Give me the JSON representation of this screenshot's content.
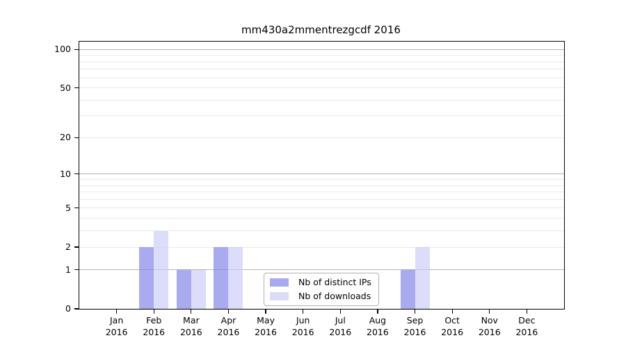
{
  "title": "mm430a2mmentrezgcdf 2016",
  "chart_data": {
    "type": "bar",
    "title": "mm430a2mmentrezgcdf 2016",
    "year_label": "2016",
    "categories": [
      "Jan",
      "Feb",
      "Mar",
      "Apr",
      "May",
      "Jun",
      "Jul",
      "Aug",
      "Sep",
      "Oct",
      "Nov",
      "Dec"
    ],
    "series": [
      {
        "name": "Nb of distinct IPs",
        "values": [
          0,
          2,
          1,
          2,
          0,
          0,
          0,
          0,
          1,
          0,
          0,
          0
        ],
        "bar_color": "rgba(134,134,234,0.7)",
        "legend_color": "#aaaaee"
      },
      {
        "name": "Nb of downloads",
        "values": [
          0,
          3,
          1,
          2,
          0,
          0,
          0,
          0,
          2,
          0,
          0,
          0
        ],
        "bar_color": "rgba(205,205,249,0.7)",
        "legend_color": "#dcdcf8"
      }
    ],
    "xlabel": "",
    "ylabel": "",
    "y_ticks": [
      0,
      1,
      2,
      5,
      10,
      20,
      50,
      100
    ],
    "major_grid_values": [
      1,
      10,
      100
    ],
    "minor_grid_values": [
      2,
      3,
      4,
      5,
      6,
      7,
      8,
      9,
      20,
      30,
      40,
      50,
      60,
      70,
      80,
      90
    ],
    "scale": "log1p",
    "ylim": [
      0,
      115
    ],
    "grid": "on",
    "legend_position": "bottom-center",
    "colors": {
      "axis": "#000000",
      "major_grid": "#b3b3b3",
      "minor_grid": "#e9e9e9",
      "background": "#ffffff"
    }
  }
}
